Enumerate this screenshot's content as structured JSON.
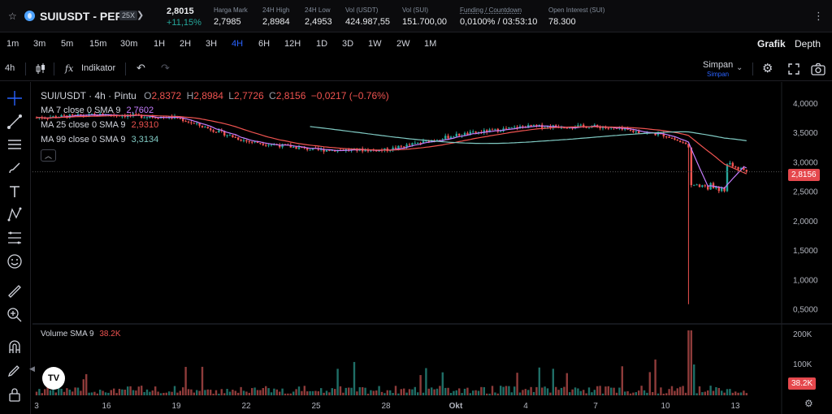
{
  "header": {
    "symbol": "SUIUSDT - PERP",
    "leverage": "25X",
    "last_price": "2,8015",
    "change_pct": "+11,15%",
    "stats": [
      {
        "label": "Harga Mark",
        "value": "2,7985"
      },
      {
        "label": "24H High",
        "value": "2,8984"
      },
      {
        "label": "24H Low",
        "value": "2,4953"
      },
      {
        "label": "Vol (USDT)",
        "value": "424.987,55"
      },
      {
        "label": "Vol (SUI)",
        "value": "151.700,00"
      },
      {
        "label": "Funding / Countdown",
        "value": "0,0100% / 03:53:10"
      },
      {
        "label": "Open Interest (SUI)",
        "value": "78.300"
      }
    ]
  },
  "timeframes": [
    "1m",
    "3m",
    "5m",
    "15m",
    "30m",
    "1H",
    "2H",
    "3H",
    "4H",
    "6H",
    "12H",
    "1D",
    "3D",
    "1W",
    "2W",
    "1M"
  ],
  "active_timeframe": "4H",
  "view_tabs": {
    "chart": "Grafik",
    "depth": "Depth"
  },
  "toolbar": {
    "interval": "4h",
    "indicators": "Indikator",
    "save": "Simpan",
    "save_sub": "Simpan"
  },
  "legend": {
    "title": "SUI/USDT · 4h · Pintu",
    "ohlc": {
      "o_label": "O",
      "o": "2,8372",
      "h_label": "H",
      "h": "2,8984",
      "l_label": "L",
      "l": "2,7726",
      "c_label": "C",
      "c": "2,8156",
      "chg": "−0,0217 (−0.76%)"
    },
    "ma7": {
      "label": "MA 7 close 0 SMA 9",
      "value": "2,7602"
    },
    "ma25": {
      "label": "MA 25 close 0 SMA 9",
      "value": "2,9310"
    },
    "ma99": {
      "label": "MA 99 close 0 SMA 9",
      "value": "3,3134"
    },
    "volume": {
      "label": "Volume SMA 9",
      "value": "38.2K"
    }
  },
  "current_price_tag": "2,8156",
  "current_volume_tag": "38.2K",
  "colors": {
    "up": "#26a69a",
    "down": "#ef5350",
    "ma7": "#c77dff",
    "ma25": "#ef5350",
    "ma99": "#80cbc4",
    "active": "#2962ff",
    "tag": "#e5484d"
  },
  "chart_data": {
    "type": "candlestick",
    "price_axis_ticks": [
      "4,0000",
      "3,5000",
      "3,0000",
      "2,5000",
      "2,0000",
      "1,5000",
      "1,0000",
      "0,5000"
    ],
    "price_ylim": [
      0.3,
      4.3
    ],
    "volume_axis_ticks": [
      "200K",
      "100K"
    ],
    "x_tick_labels": [
      "3",
      "16",
      "19",
      "22",
      "25",
      "28",
      "Okt",
      "4",
      "7",
      "10",
      "13"
    ],
    "close_path": [
      {
        "x": "3",
        "y": 3.75
      },
      {
        "x": "16",
        "y": 3.8
      },
      {
        "x": "19",
        "y": 3.75
      },
      {
        "x": "22",
        "y": 3.35
      },
      {
        "x": "25",
        "y": 3.2
      },
      {
        "x": "28",
        "y": 3.2
      },
      {
        "x": "Okt",
        "y": 3.45
      },
      {
        "x": "4",
        "y": 3.6
      },
      {
        "x": "7",
        "y": 3.6
      },
      {
        "x": "10",
        "y": 3.45
      },
      {
        "x": "13",
        "y": 2.8156
      }
    ],
    "spike_low": 0.58,
    "ma99_level": 3.31
  }
}
